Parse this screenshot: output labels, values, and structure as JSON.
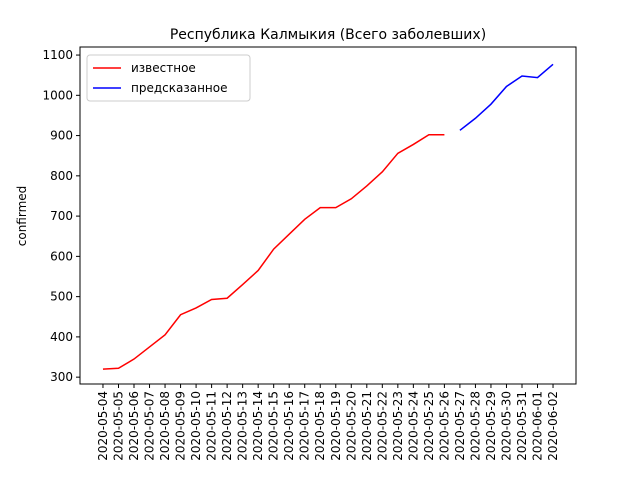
{
  "chart_data": {
    "type": "line",
    "title": "Республика Калмыкия (Всего заболевших)",
    "y_label": "confirmed",
    "categories": [
      "2020-05-04",
      "2020-05-05",
      "2020-05-06",
      "2020-05-07",
      "2020-05-08",
      "2020-05-09",
      "2020-05-10",
      "2020-05-11",
      "2020-05-12",
      "2020-05-13",
      "2020-05-14",
      "2020-05-15",
      "2020-05-16",
      "2020-05-17",
      "2020-05-18",
      "2020-05-19",
      "2020-05-20",
      "2020-05-21",
      "2020-05-22",
      "2020-05-23",
      "2020-05-24",
      "2020-05-25",
      "2020-05-26",
      "2020-05-27",
      "2020-05-28",
      "2020-05-29",
      "2020-05-30",
      "2020-05-31",
      "2020-06-01",
      "2020-06-02"
    ],
    "series": [
      {
        "name": "известное",
        "color": "#ff0000",
        "values": [
          320,
          322,
          345,
          375,
          405,
          455,
          472,
          493,
          496,
          530,
          565,
          618,
          655,
          692,
          721,
          721,
          743,
          775,
          810,
          856,
          878,
          902,
          902,
          null,
          null,
          null,
          null,
          null,
          null,
          null
        ]
      },
      {
        "name": "предсказанное",
        "color": "#0000ff",
        "values": [
          null,
          null,
          null,
          null,
          null,
          null,
          null,
          null,
          null,
          null,
          null,
          null,
          null,
          null,
          null,
          null,
          null,
          null,
          null,
          null,
          null,
          null,
          null,
          913,
          943,
          978,
          1022,
          1048,
          1044,
          1077
        ]
      }
    ],
    "ylim": [
      283,
      1120
    ],
    "yticks": [
      300,
      400,
      500,
      600,
      700,
      800,
      900,
      1000,
      1100
    ],
    "legend": "upper left"
  }
}
